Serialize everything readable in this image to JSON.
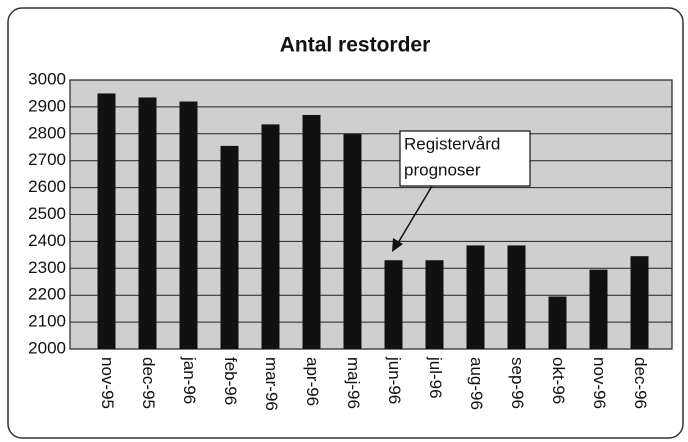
{
  "chart_data": {
    "type": "bar",
    "title": "Antal restorder",
    "categories": [
      "nov-95",
      "dec-95",
      "jan-96",
      "feb-96",
      "mar-96",
      "apr-96",
      "maj-96",
      "jun-96",
      "jul-96",
      "aug-96",
      "sep-96",
      "okt-96",
      "nov-96",
      "dec-96"
    ],
    "values": [
      2950,
      2935,
      2920,
      2755,
      2835,
      2870,
      2800,
      2330,
      2330,
      2385,
      2385,
      2195,
      2295,
      2345
    ],
    "color": "#111111",
    "ylim": [
      2000,
      3000
    ],
    "yticks": [
      2000,
      2100,
      2200,
      2300,
      2400,
      2500,
      2600,
      2700,
      2800,
      2900,
      3000
    ],
    "grid": true,
    "annotation": [
      "Registervård",
      "prognoser"
    ]
  }
}
